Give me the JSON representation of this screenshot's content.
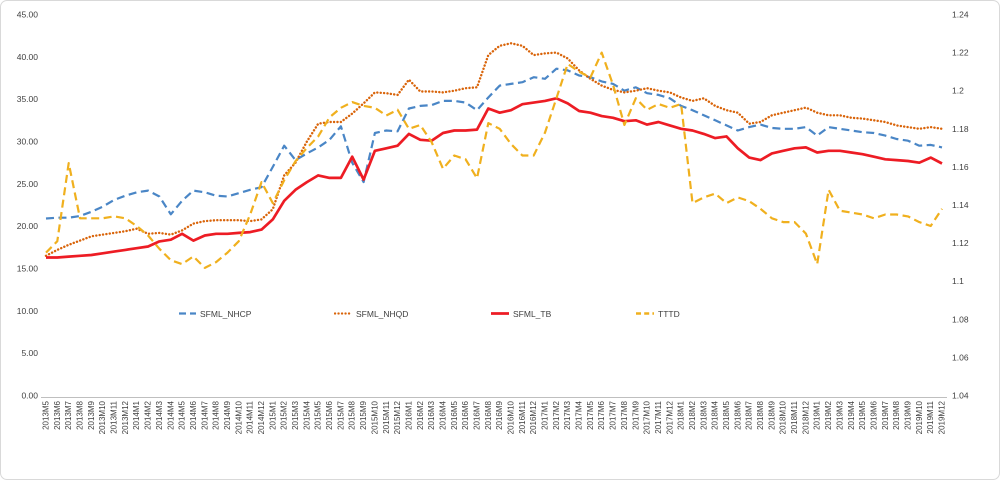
{
  "chart_data": {
    "type": "line",
    "title": "",
    "grid": false,
    "legend_position": "inside-bottom-center",
    "left_axis": {
      "min": 0,
      "max": 45,
      "tick_step": 5,
      "tick_labels": [
        "45.00",
        "40.00",
        "35.00",
        "30.00",
        "25.00",
        "20.00",
        "15.00",
        "10.00",
        "5.00",
        "0.00"
      ]
    },
    "right_axis": {
      "min": 1.04,
      "max": 1.24,
      "tick_step": 0.02,
      "tick_labels": [
        "1.24",
        "1.22",
        "1.2",
        "1.18",
        "1.16",
        "1.14",
        "1.12",
        "1.1",
        "1.08",
        "1.06",
        "1.04"
      ]
    },
    "x": [
      "2013M5",
      "2013M6",
      "2013M7",
      "2013M8",
      "2013M9",
      "2013M10",
      "2013M11",
      "2013M12",
      "2014M1",
      "2014M2",
      "2014M3",
      "2014M4",
      "2014M5",
      "2014M6",
      "2014M7",
      "2014M8",
      "2014M9",
      "2014M10",
      "2014M11",
      "2014M12",
      "2015M1",
      "2015M2",
      "2015M3",
      "2015M4",
      "2015M5",
      "2015M6",
      "2015M7",
      "2015M8",
      "2015M9",
      "2015M10",
      "2015M11",
      "2015M12",
      "2016M1",
      "2016M2",
      "2016M3",
      "2016M4",
      "2016M5",
      "2016M6",
      "2016M7",
      "2016M8",
      "2016M9",
      "2016M10",
      "2016M11",
      "2016M12",
      "2017M1",
      "2017M2",
      "2017M3",
      "2017M4",
      "2017M5",
      "2017M6",
      "2017M7",
      "2017M8",
      "2017M9",
      "2017M10",
      "2017M11",
      "2017M12",
      "2018M1",
      "2018M2",
      "2018M3",
      "2018M4",
      "2018M5",
      "2018M6",
      "2018M7",
      "2018M8",
      "2018M9",
      "2018M10",
      "2018M11",
      "2018M12",
      "2019M1",
      "2019M2",
      "2019M3",
      "2019M4",
      "2019M5",
      "2019M6",
      "2019M7",
      "2019M8",
      "2019M9",
      "2019M10",
      "2019M11",
      "2019M12"
    ],
    "series": [
      {
        "name": "SFML_NHCP",
        "axis": "left",
        "color": "#4a86c6",
        "dash": "dashed",
        "values": [
          20.9,
          21.0,
          21.0,
          21.2,
          21.7,
          22.3,
          23.1,
          23.6,
          24.0,
          24.2,
          23.5,
          21.4,
          23.0,
          24.2,
          24.0,
          23.6,
          23.5,
          23.9,
          24.3,
          24.6,
          27.0,
          29.5,
          27.8,
          28.6,
          29.3,
          30.2,
          31.8,
          27.5,
          25.2,
          31.0,
          31.3,
          31.2,
          33.9,
          34.2,
          34.3,
          34.8,
          34.8,
          34.6,
          33.7,
          35.2,
          36.6,
          36.8,
          37.0,
          37.6,
          37.4,
          38.6,
          38.4,
          37.8,
          37.6,
          37.1,
          36.8,
          36.0,
          36.4,
          35.7,
          35.5,
          35.1,
          34.2,
          33.7,
          33.1,
          32.5,
          31.9,
          31.3,
          31.7,
          32.0,
          31.6,
          31.5,
          31.5,
          31.7,
          30.7,
          31.7,
          31.5,
          31.3,
          31.1,
          31.0,
          30.7,
          30.3,
          30.1,
          29.5,
          29.6,
          29.3
        ]
      },
      {
        "name": "SFML_NHQD",
        "axis": "left",
        "color": "#d9640a",
        "dash": "dotted",
        "values": [
          16.5,
          17.2,
          17.8,
          18.3,
          18.8,
          19.0,
          19.2,
          19.4,
          19.7,
          19.1,
          19.2,
          19.0,
          19.5,
          20.3,
          20.6,
          20.7,
          20.7,
          20.7,
          20.6,
          20.8,
          22.0,
          26.0,
          27.5,
          30.0,
          32.1,
          32.3,
          32.3,
          33.3,
          34.5,
          35.8,
          35.7,
          35.5,
          37.3,
          35.9,
          35.9,
          35.8,
          36.0,
          36.3,
          36.4,
          40.2,
          41.3,
          41.6,
          41.3,
          40.2,
          40.4,
          40.5,
          39.8,
          38.4,
          37.4,
          36.6,
          36.1,
          35.8,
          36.0,
          36.3,
          36.0,
          35.8,
          35.2,
          34.8,
          35.1,
          34.2,
          33.7,
          33.4,
          32.1,
          32.3,
          33.1,
          33.4,
          33.7,
          34.0,
          33.4,
          33.1,
          33.1,
          32.8,
          32.7,
          32.5,
          32.3,
          31.9,
          31.7,
          31.5,
          31.7,
          31.5
        ]
      },
      {
        "name": "SFML_TB",
        "axis": "left",
        "color": "#ed1c24",
        "dash": "solid",
        "values": [
          16.3,
          16.3,
          16.4,
          16.5,
          16.6,
          16.8,
          17.0,
          17.2,
          17.4,
          17.6,
          18.2,
          18.4,
          19.1,
          18.3,
          18.9,
          19.1,
          19.1,
          19.2,
          19.3,
          19.6,
          20.8,
          23.0,
          24.3,
          25.2,
          26.0,
          25.7,
          25.7,
          28.2,
          25.5,
          28.9,
          29.2,
          29.5,
          30.9,
          30.2,
          30.1,
          31.0,
          31.3,
          31.3,
          31.4,
          33.9,
          33.4,
          33.7,
          34.4,
          34.6,
          34.8,
          35.1,
          34.5,
          33.6,
          33.4,
          33.0,
          32.8,
          32.4,
          32.5,
          32.0,
          32.3,
          31.9,
          31.5,
          31.3,
          30.9,
          30.4,
          30.6,
          29.2,
          28.1,
          27.8,
          28.6,
          28.9,
          29.2,
          29.3,
          28.7,
          28.9,
          28.9,
          28.7,
          28.5,
          28.2,
          27.9,
          27.8,
          27.7,
          27.5,
          28.1,
          27.4
        ]
      },
      {
        "name": "TTTD",
        "axis": "right",
        "color": "#f0b01e",
        "dash": "dashed",
        "values": [
          1.115,
          1.121,
          1.162,
          1.133,
          1.133,
          1.133,
          1.134,
          1.133,
          1.129,
          1.124,
          1.117,
          1.111,
          1.109,
          1.113,
          1.107,
          1.11,
          1.115,
          1.121,
          1.135,
          1.152,
          1.141,
          1.153,
          1.163,
          1.17,
          1.176,
          1.186,
          1.191,
          1.194,
          1.192,
          1.191,
          1.187,
          1.19,
          1.18,
          1.182,
          1.173,
          1.159,
          1.166,
          1.164,
          1.154,
          1.183,
          1.18,
          1.172,
          1.166,
          1.166,
          1.178,
          1.196,
          1.214,
          1.21,
          1.207,
          1.22,
          1.203,
          1.182,
          1.196,
          1.19,
          1.193,
          1.191,
          1.193,
          1.141,
          1.144,
          1.146,
          1.141,
          1.144,
          1.142,
          1.138,
          1.133,
          1.131,
          1.131,
          1.125,
          1.109,
          1.148,
          1.137,
          1.136,
          1.135,
          1.133,
          1.135,
          1.135,
          1.134,
          1.131,
          1.129,
          1.138
        ]
      }
    ]
  }
}
